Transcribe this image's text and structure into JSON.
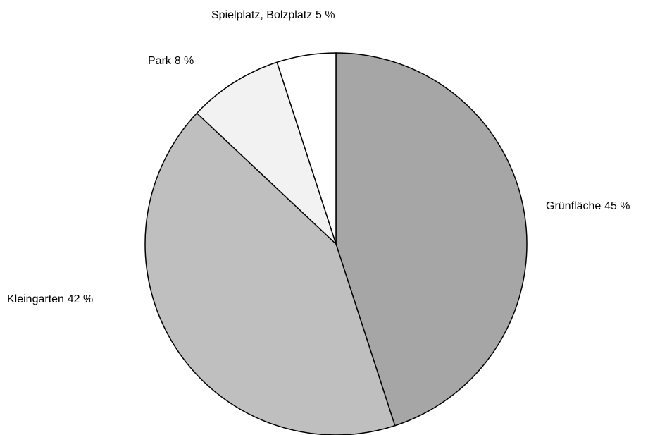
{
  "chart_data": {
    "type": "pie",
    "categories": [
      "Grünfläche",
      "Kleingarten",
      "Park",
      "Spielplatz, Bolzplatz"
    ],
    "values": [
      45,
      42,
      8,
      5
    ],
    "value_labels": [
      "45 %",
      "42 %",
      "8 %",
      "5 %"
    ],
    "colors": [
      "#a6a6a6",
      "#bfbfbf",
      "#f2f2f2",
      "#ffffff"
    ]
  }
}
